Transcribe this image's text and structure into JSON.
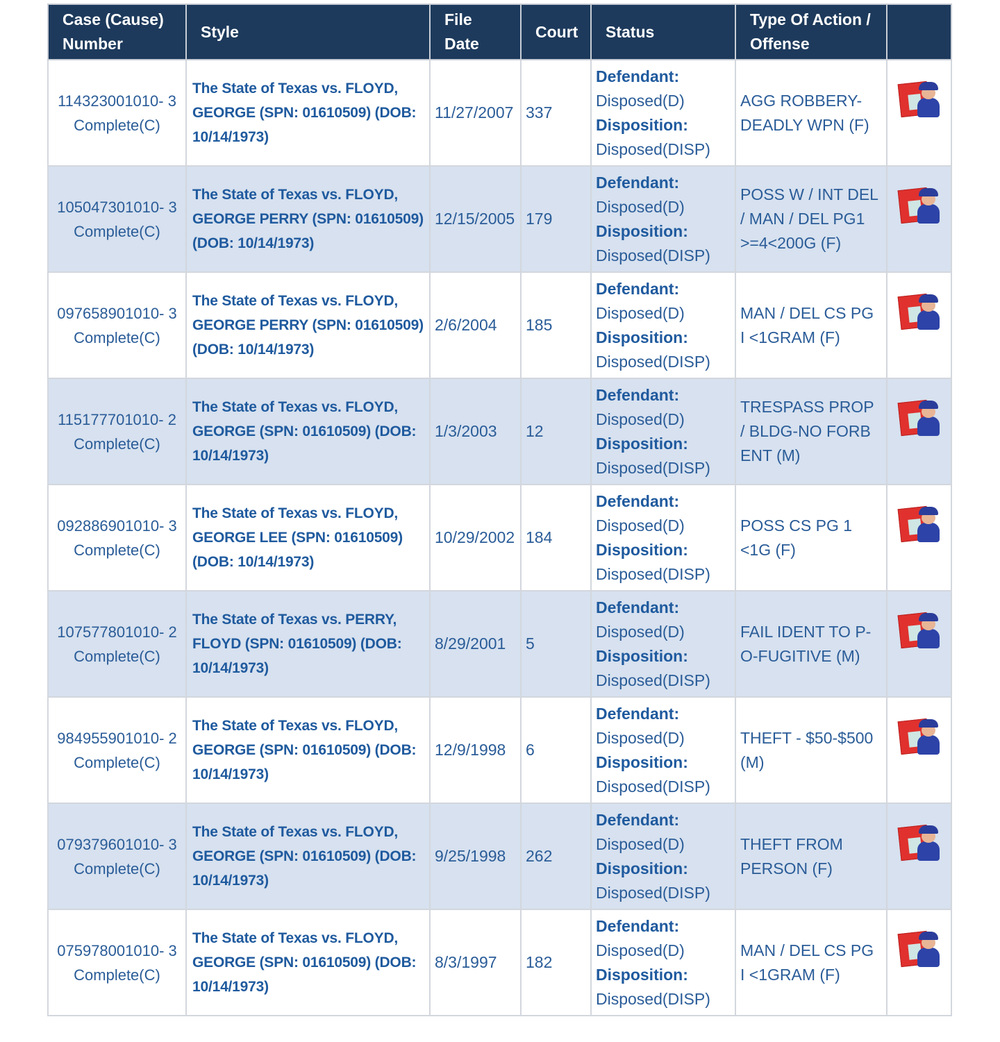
{
  "header": {
    "case": "Case (Cause) Number",
    "style": "Style",
    "file_date": "File Date",
    "court": "Court",
    "status": "Status",
    "type": "Type Of Action / Offense",
    "icon": ""
  },
  "labels": {
    "defendant": "Defendant:",
    "disposition": "Disposition:"
  },
  "colors": {
    "header_bg": "#1d3a5c",
    "link": "#2a5c98",
    "alt_row": "#d7e1ef"
  },
  "rows": [
    {
      "case": "114323001010- 3",
      "case_status": "Complete(C)",
      "style": "The State of Texas vs. FLOYD, GEORGE (SPN: 01610509) (DOB: 10/14/1973)",
      "file_date": "11/27/2007",
      "court": "337",
      "defendant": "Disposed(D)",
      "disposition": "Disposed(DISP)",
      "offense": "AGG ROBBERY-DEADLY WPN (F)",
      "icon": "inmate-icon"
    },
    {
      "case": "105047301010- 3",
      "case_status": "Complete(C)",
      "style": "The State of Texas vs. FLOYD, GEORGE PERRY (SPN: 01610509) (DOB: 10/14/1973)",
      "file_date": "12/15/2005",
      "court": "179",
      "defendant": "Disposed(D)",
      "disposition": "Disposed(DISP)",
      "offense": "POSS W / INT DEL / MAN / DEL PG1 >=4<200G (F)",
      "icon": "inmate-icon"
    },
    {
      "case": "097658901010- 3",
      "case_status": "Complete(C)",
      "style": "The State of Texas vs. FLOYD, GEORGE PERRY (SPN: 01610509) (DOB: 10/14/1973)",
      "file_date": "2/6/2004",
      "court": "185",
      "defendant": "Disposed(D)",
      "disposition": "Disposed(DISP)",
      "offense": "MAN / DEL CS PG I <1GRAM (F)",
      "icon": "inmate-icon"
    },
    {
      "case": "115177701010- 2",
      "case_status": "Complete(C)",
      "style": "The State of Texas vs. FLOYD, GEORGE (SPN: 01610509) (DOB: 10/14/1973)",
      "file_date": "1/3/2003",
      "court": "12",
      "defendant": "Disposed(D)",
      "disposition": "Disposed(DISP)",
      "offense": "TRESPASS PROP / BLDG-NO FORB ENT (M)",
      "icon": "inmate-icon"
    },
    {
      "case": "092886901010- 3",
      "case_status": "Complete(C)",
      "style": "The State of Texas vs. FLOYD, GEORGE LEE (SPN: 01610509) (DOB: 10/14/1973)",
      "file_date": "10/29/2002",
      "court": "184",
      "defendant": "Disposed(D)",
      "disposition": "Disposed(DISP)",
      "offense": "POSS CS PG 1 <1G (F)",
      "icon": "inmate-icon"
    },
    {
      "case": "107577801010- 2",
      "case_status": "Complete(C)",
      "style": "The State of Texas vs. PERRY, FLOYD (SPN: 01610509) (DOB: 10/14/1973)",
      "file_date": "8/29/2001",
      "court": "5",
      "defendant": "Disposed(D)",
      "disposition": "Disposed(DISP)",
      "offense": "FAIL IDENT TO P-O-FUGITIVE (M)",
      "icon": "inmate-icon"
    },
    {
      "case": "984955901010- 2",
      "case_status": "Complete(C)",
      "style": "The State of Texas vs. FLOYD, GEORGE (SPN: 01610509) (DOB: 10/14/1973)",
      "file_date": "12/9/1998",
      "court": "6",
      "defendant": "Disposed(D)",
      "disposition": "Disposed(DISP)",
      "offense": "THEFT - $50-$500 (M)",
      "icon": "inmate-icon"
    },
    {
      "case": "079379601010- 3",
      "case_status": "Complete(C)",
      "style": "The State of Texas vs. FLOYD, GEORGE (SPN: 01610509) (DOB: 10/14/1973)",
      "file_date": "9/25/1998",
      "court": "262",
      "defendant": "Disposed(D)",
      "disposition": "Disposed(DISP)",
      "offense": "THEFT FROM PERSON (F)",
      "icon": "inmate-icon"
    },
    {
      "case": "075978001010- 3",
      "case_status": "Complete(C)",
      "style": "The State of Texas vs. FLOYD, GEORGE (SPN: 01610509) (DOB: 10/14/1973)",
      "file_date": "8/3/1997",
      "court": "182",
      "defendant": "Disposed(D)",
      "disposition": "Disposed(DISP)",
      "offense": "MAN / DEL CS PG I <1GRAM (F)",
      "icon": "inmate-icon"
    }
  ]
}
